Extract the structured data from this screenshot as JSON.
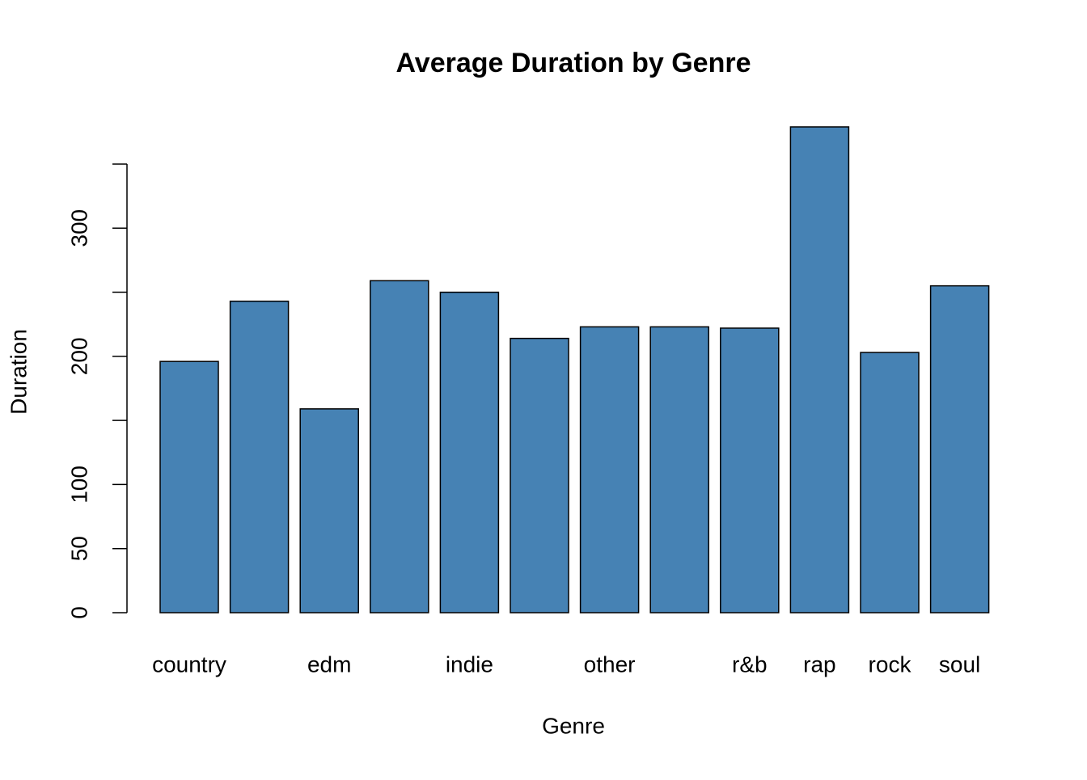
{
  "chart_data": {
    "type": "bar",
    "title": "Average Duration by Genre",
    "x_label": "Genre",
    "y_label": "Duration",
    "categories": [
      "country",
      null,
      "edm",
      null,
      "indie",
      null,
      "other",
      null,
      "r&b",
      "rap",
      "rock",
      "soul"
    ],
    "values": [
      196,
      243,
      159,
      259,
      250,
      214,
      223,
      223,
      222,
      379,
      203,
      255
    ],
    "color": "#4682b4",
    "ylim": [
      0,
      380
    ],
    "yticks": [
      0,
      50,
      100,
      {
        "value": 150,
        "label": null
      },
      200,
      {
        "value": 250,
        "label": null
      },
      300,
      {
        "value": 350,
        "label": null
      }
    ],
    "grid": false
  }
}
